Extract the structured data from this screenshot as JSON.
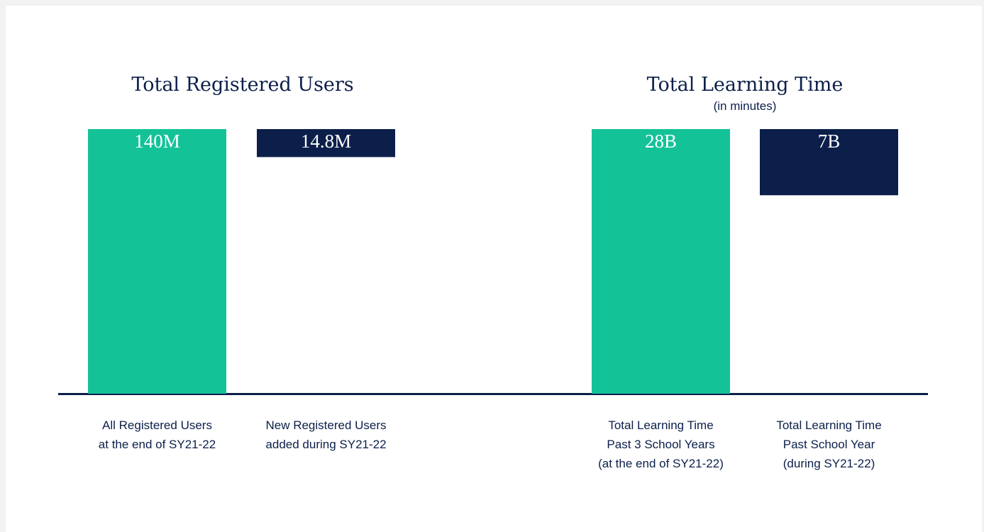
{
  "chart_data": [
    {
      "type": "bar",
      "title": "Total Registered Users",
      "categories": [
        [
          "All Registered Users",
          "at the end of SY21-22"
        ],
        [
          "New Registered Users",
          "added during SY21-22"
        ]
      ],
      "values": [
        140,
        14.8
      ],
      "value_labels": [
        "140M",
        "14.8M"
      ],
      "colors": [
        "#14c298",
        "#0c1f4a"
      ],
      "ylim": [
        0,
        140
      ]
    },
    {
      "type": "bar",
      "title": "Total Learning Time",
      "subtitle": "(in minutes)",
      "categories": [
        [
          "Total Learning Time",
          "Past 3 School Years",
          "(at the end of SY21-22)"
        ],
        [
          "Total Learning Time",
          "Past School Year",
          "(during SY21-22)"
        ]
      ],
      "values": [
        28,
        7
      ],
      "value_labels": [
        "28B",
        "7B"
      ],
      "colors": [
        "#14c298",
        "#0c1f4a"
      ],
      "ylim": [
        0,
        28
      ]
    }
  ]
}
